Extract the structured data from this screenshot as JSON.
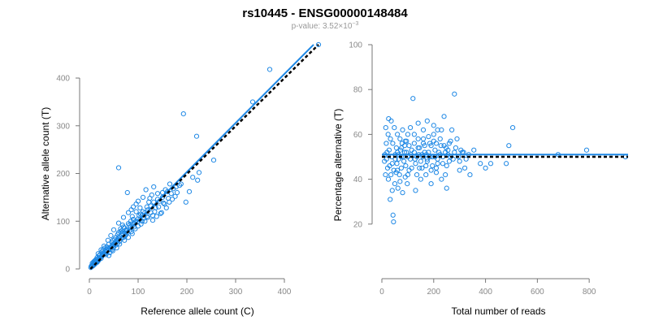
{
  "header": {
    "title": "rs10445 - ENSG00000148484",
    "subtitle_prefix": "p-value: 3.52×10",
    "subtitle_exponent": "−3"
  },
  "colors": {
    "points": "#1e88e5",
    "fit": "#1e88e5",
    "reference": "#000000",
    "axis": "#777777"
  },
  "chart_data": [
    {
      "type": "scatter",
      "xlabel": "Reference allele count (C)",
      "ylabel": "Alternative allele count (T)",
      "xticks": [
        0,
        100,
        200,
        300,
        400
      ],
      "yticks": [
        0,
        100,
        200,
        300,
        400
      ],
      "xlim": [
        0,
        470
      ],
      "ylim": [
        0,
        475
      ],
      "grid": false,
      "lines": [
        {
          "style": "solid-blue",
          "from": [
            2,
            0
          ],
          "to": [
            460,
            470
          ]
        },
        {
          "style": "dashed-black",
          "from": [
            2,
            0
          ],
          "to": [
            470,
            470
          ]
        }
      ],
      "points": [
        [
          470,
          470
        ],
        [
          370,
          418
        ],
        [
          193,
          325
        ],
        [
          220,
          278
        ],
        [
          60,
          212
        ],
        [
          335,
          350
        ],
        [
          255,
          228
        ],
        [
          225,
          202
        ],
        [
          212,
          192
        ],
        [
          222,
          186
        ],
        [
          205,
          162
        ],
        [
          198,
          140
        ],
        [
          185,
          175
        ],
        [
          165,
          178
        ],
        [
          160,
          162
        ],
        [
          150,
          150
        ],
        [
          152,
          138
        ],
        [
          158,
          128
        ],
        [
          140,
          158
        ],
        [
          132,
          172
        ],
        [
          128,
          155
        ],
        [
          122,
          140
        ],
        [
          118,
          130
        ],
        [
          110,
          120
        ],
        [
          105,
          115
        ],
        [
          100,
          105
        ],
        [
          95,
          100
        ],
        [
          92,
          95
        ],
        [
          88,
          110
        ],
        [
          85,
          100
        ],
        [
          82,
          92
        ],
        [
          80,
          95
        ],
        [
          78,
          160
        ],
        [
          75,
          80
        ],
        [
          72,
          86
        ],
        [
          70,
          88
        ],
        [
          68,
          75
        ],
        [
          66,
          72
        ],
        [
          64,
          78
        ],
        [
          62,
          68
        ],
        [
          60,
          65
        ],
        [
          58,
          62
        ],
        [
          56,
          60
        ],
        [
          55,
          58
        ],
        [
          52,
          55
        ],
        [
          50,
          52
        ],
        [
          48,
          50
        ],
        [
          46,
          48
        ],
        [
          45,
          46
        ],
        [
          44,
          42
        ],
        [
          42,
          45
        ],
        [
          40,
          40
        ],
        [
          38,
          42
        ],
        [
          36,
          38
        ],
        [
          35,
          35
        ],
        [
          33,
          38
        ],
        [
          32,
          32
        ],
        [
          30,
          34
        ],
        [
          28,
          30
        ],
        [
          27,
          28
        ],
        [
          25,
          26
        ],
        [
          24,
          22
        ],
        [
          22,
          24
        ],
        [
          20,
          20
        ],
        [
          19,
          18
        ],
        [
          18,
          22
        ],
        [
          17,
          16
        ],
        [
          16,
          14
        ],
        [
          15,
          15
        ],
        [
          14,
          17
        ],
        [
          13,
          12
        ],
        [
          12,
          14
        ],
        [
          11,
          10
        ],
        [
          10,
          12
        ],
        [
          9,
          8
        ],
        [
          8,
          10
        ],
        [
          7,
          6
        ],
        [
          6,
          8
        ],
        [
          5,
          5
        ],
        [
          4,
          6
        ],
        [
          3,
          3
        ],
        [
          26,
          36
        ],
        [
          34,
          30
        ],
        [
          40,
          52
        ],
        [
          46,
          56
        ],
        [
          52,
          62
        ],
        [
          58,
          72
        ],
        [
          64,
          84
        ],
        [
          68,
          92
        ],
        [
          74,
          70
        ],
        [
          76,
          82
        ],
        [
          84,
          88
        ],
        [
          86,
          78
        ],
        [
          90,
          104
        ],
        [
          96,
          120
        ],
        [
          102,
          112
        ],
        [
          108,
          100
        ],
        [
          112,
          106
        ],
        [
          114,
          118
        ],
        [
          120,
          124
        ],
        [
          126,
          132
        ],
        [
          130,
          112
        ],
        [
          134,
          120
        ],
        [
          136,
          128
        ],
        [
          142,
          130
        ],
        [
          144,
          142
        ],
        [
          148,
          118
        ],
        [
          154,
          136
        ],
        [
          156,
          166
        ],
        [
          162,
          148
        ],
        [
          168,
          158
        ],
        [
          172,
          168
        ],
        [
          176,
          152
        ],
        [
          180,
          160
        ],
        [
          188,
          178
        ],
        [
          100,
          142
        ],
        [
          90,
          130
        ],
        [
          80,
          118
        ],
        [
          70,
          108
        ],
        [
          60,
          96
        ],
        [
          50,
          82
        ],
        [
          44,
          70
        ],
        [
          38,
          60
        ],
        [
          30,
          48
        ],
        [
          24,
          40
        ],
        [
          18,
          32
        ],
        [
          110,
          150
        ],
        [
          116,
          166
        ],
        [
          124,
          148
        ],
        [
          86,
          124
        ],
        [
          96,
          136
        ],
        [
          104,
          128
        ],
        [
          40,
          28
        ],
        [
          48,
          38
        ],
        [
          56,
          44
        ],
        [
          62,
          52
        ],
        [
          72,
          60
        ],
        [
          80,
          66
        ],
        [
          88,
          74
        ],
        [
          94,
          84
        ],
        [
          100,
          90
        ],
        [
          106,
          94
        ],
        [
          114,
          100
        ],
        [
          120,
          108
        ],
        [
          130,
          102
        ],
        [
          138,
          110
        ],
        [
          146,
          116
        ],
        [
          62,
          58
        ],
        [
          66,
          64
        ],
        [
          70,
          66
        ],
        [
          74,
          74
        ],
        [
          78,
          76
        ],
        [
          82,
          80
        ],
        [
          36,
          46
        ],
        [
          32,
          44
        ],
        [
          28,
          40
        ],
        [
          42,
          34
        ],
        [
          46,
          40
        ],
        [
          50,
          46
        ],
        [
          54,
          50
        ],
        [
          58,
          54
        ],
        [
          22,
          30
        ],
        [
          20,
          28
        ],
        [
          16,
          24
        ],
        [
          14,
          20
        ],
        [
          12,
          18
        ],
        [
          10,
          16
        ],
        [
          8,
          14
        ],
        [
          6,
          12
        ],
        [
          118,
          110
        ],
        [
          126,
          118
        ],
        [
          132,
          140
        ],
        [
          140,
          146
        ],
        [
          150,
          160
        ],
        [
          164,
          140
        ],
        [
          170,
          146
        ],
        [
          178,
          172
        ],
        [
          86,
          94
        ],
        [
          92,
          88
        ],
        [
          98,
          98
        ],
        [
          104,
          104
        ],
        [
          108,
          112
        ],
        [
          48,
          60
        ],
        [
          54,
          66
        ],
        [
          60,
          76
        ],
        [
          66,
          80
        ],
        [
          72,
          76
        ]
      ]
    },
    {
      "type": "scatter",
      "xlabel": "Total number of reads",
      "ylabel": "Percentage alternative (T)",
      "xticks": [
        0,
        200,
        400,
        600,
        800
      ],
      "yticks": [
        20,
        40,
        60,
        80,
        100
      ],
      "xlim": [
        0,
        950
      ],
      "ylim": [
        0,
        100
      ],
      "grid": false,
      "lines": [
        {
          "style": "solid-blue",
          "from": [
            0,
            51
          ],
          "to": [
            950,
            51
          ]
        },
        {
          "style": "dashed-black",
          "from": [
            0,
            50
          ],
          "to": [
            950,
            50
          ]
        }
      ],
      "points": [
        [
          940,
          50
        ],
        [
          790,
          53
        ],
        [
          680,
          51
        ],
        [
          505,
          63
        ],
        [
          490,
          55
        ],
        [
          480,
          47
        ],
        [
          420,
          47
        ],
        [
          400,
          45
        ],
        [
          380,
          47
        ],
        [
          355,
          53
        ],
        [
          340,
          42
        ],
        [
          325,
          49
        ],
        [
          310,
          52
        ],
        [
          300,
          44
        ],
        [
          290,
          58
        ],
        [
          280,
          78
        ],
        [
          270,
          62
        ],
        [
          265,
          57
        ],
        [
          260,
          48
        ],
        [
          255,
          53
        ],
        [
          250,
          46
        ],
        [
          245,
          42
        ],
        [
          240,
          55
        ],
        [
          235,
          50
        ],
        [
          230,
          62
        ],
        [
          225,
          58
        ],
        [
          220,
          52
        ],
        [
          215,
          47
        ],
        [
          210,
          45
        ],
        [
          205,
          53
        ],
        [
          200,
          60
        ],
        [
          195,
          50
        ],
        [
          190,
          44
        ],
        [
          185,
          56
        ],
        [
          180,
          52
        ],
        [
          175,
          49
        ],
        [
          170,
          46
        ],
        [
          165,
          55
        ],
        [
          160,
          58
        ],
        [
          155,
          51
        ],
        [
          150,
          48
        ],
        [
          145,
          45
        ],
        [
          140,
          54
        ],
        [
          135,
          50
        ],
        [
          130,
          47
        ],
        [
          125,
          56
        ],
        [
          120,
          76
        ],
        [
          115,
          53
        ],
        [
          110,
          49
        ],
        [
          105,
          44
        ],
        [
          100,
          60
        ],
        [
          98,
          38
        ],
        [
          95,
          52
        ],
        [
          92,
          46
        ],
        [
          90,
          41
        ],
        [
          88,
          55
        ],
        [
          85,
          48
        ],
        [
          82,
          50
        ],
        [
          80,
          62
        ],
        [
          78,
          56
        ],
        [
          75,
          45
        ],
        [
          72,
          53
        ],
        [
          70,
          58
        ],
        [
          68,
          42
        ],
        [
          65,
          49
        ],
        [
          62,
          36
        ],
        [
          60,
          60
        ],
        [
          58,
          47
        ],
        [
          56,
          54
        ],
        [
          55,
          43
        ],
        [
          52,
          51
        ],
        [
          50,
          38
        ],
        [
          48,
          63
        ],
        [
          46,
          44
        ],
        [
          45,
          21
        ],
        [
          43,
          24
        ],
        [
          42,
          56
        ],
        [
          40,
          35
        ],
        [
          38,
          50
        ],
        [
          36,
          66
        ],
        [
          35,
          42
        ],
        [
          33,
          58
        ],
        [
          32,
          31
        ],
        [
          30,
          46
        ],
        [
          28,
          53
        ],
        [
          26,
          67
        ],
        [
          25,
          40
        ],
        [
          24,
          60
        ],
        [
          22,
          45
        ],
        [
          20,
          52
        ],
        [
          18,
          49
        ],
        [
          17,
          56
        ],
        [
          15,
          63
        ],
        [
          14,
          42
        ],
        [
          12,
          51
        ],
        [
          10,
          48
        ],
        [
          110,
          63
        ],
        [
          125,
          60
        ],
        [
          140,
          65
        ],
        [
          160,
          62
        ],
        [
          175,
          66
        ],
        [
          200,
          64
        ],
        [
          215,
          62
        ],
        [
          240,
          68
        ],
        [
          260,
          56
        ],
        [
          280,
          52
        ],
        [
          300,
          48
        ],
        [
          320,
          45
        ],
        [
          130,
          35
        ],
        [
          150,
          40
        ],
        [
          170,
          42
        ],
        [
          190,
          38
        ],
        [
          210,
          43
        ],
        [
          230,
          40
        ],
        [
          250,
          36
        ],
        [
          60,
          44
        ],
        [
          70,
          39
        ],
        [
          80,
          34
        ],
        [
          100,
          42
        ],
        [
          115,
          45
        ],
        [
          135,
          42
        ],
        [
          155,
          45
        ],
        [
          175,
          48
        ],
        [
          195,
          46
        ],
        [
          215,
          49
        ],
        [
          235,
          47
        ],
        [
          255,
          51
        ],
        [
          275,
          49
        ],
        [
          295,
          50
        ],
        [
          315,
          52
        ],
        [
          335,
          51
        ],
        [
          95,
          57
        ],
        [
          105,
          55
        ],
        [
          125,
          52
        ],
        [
          145,
          54
        ],
        [
          165,
          52
        ],
        [
          185,
          50
        ],
        [
          205,
          50
        ],
        [
          225,
          51
        ],
        [
          245,
          52
        ],
        [
          265,
          50
        ],
        [
          285,
          54
        ],
        [
          305,
          53
        ],
        [
          60,
          52
        ],
        [
          75,
          50
        ],
        [
          88,
          52
        ],
        [
          100,
          50
        ],
        [
          112,
          51
        ],
        [
          128,
          49
        ],
        [
          142,
          51
        ],
        [
          158,
          50
        ],
        [
          172,
          51
        ],
        [
          190,
          55
        ],
        [
          210,
          56
        ],
        [
          228,
          55
        ],
        [
          248,
          54
        ],
        [
          40,
          47
        ],
        [
          52,
          49
        ],
        [
          64,
          51
        ],
        [
          76,
          54
        ],
        [
          90,
          57
        ],
        [
          140,
          58
        ],
        [
          160,
          56
        ],
        [
          180,
          59
        ],
        [
          200,
          57
        ]
      ]
    }
  ]
}
